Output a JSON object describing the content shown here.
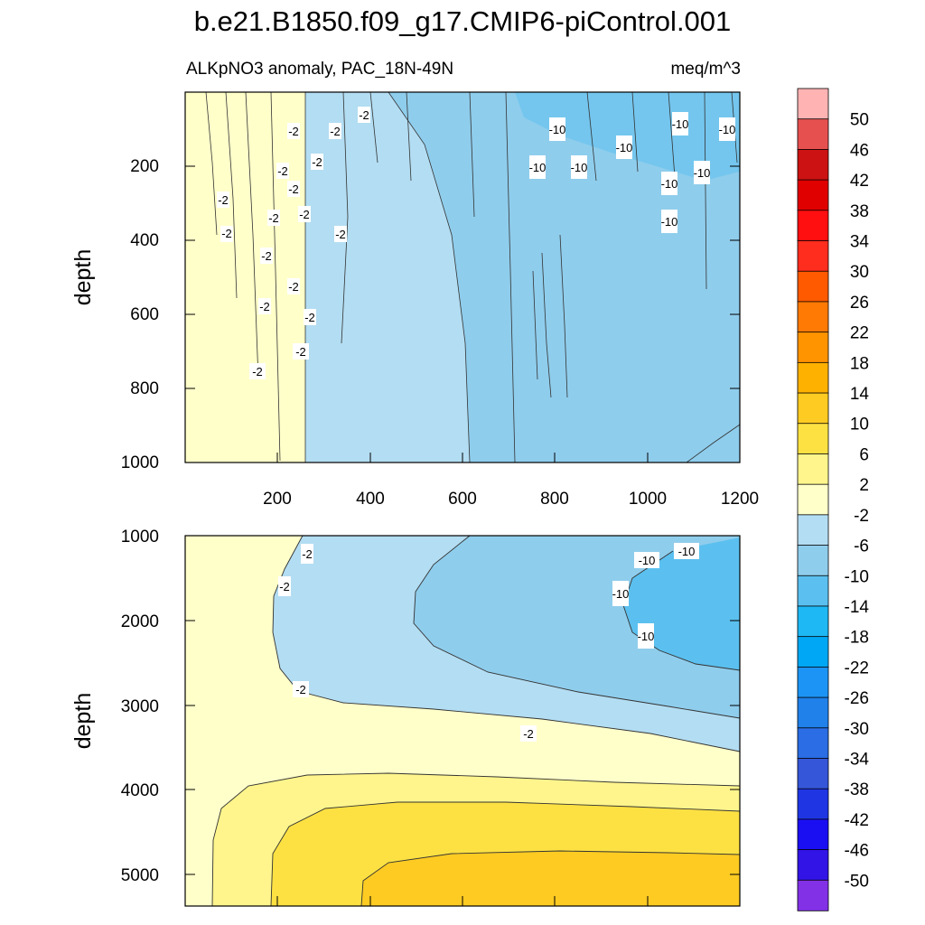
{
  "title": "b.e21.B1850.f09_g17.CMIP6-piControl.001",
  "subtitle_left": "ALKpNO3 anomaly, PAC_18N-49N",
  "units": "meq/m^3",
  "chart_data": [
    {
      "type": "contour",
      "panel": "upper",
      "ylabel": "depth",
      "ylim": [
        0,
        1000
      ],
      "xlim": [
        0,
        1200
      ],
      "xticks": [
        "200",
        "400",
        "600",
        "800",
        "1000",
        "1200"
      ],
      "yticks": [
        "200",
        "400",
        "600",
        "800",
        "1000"
      ],
      "contour_labels": [
        "-2",
        "-10"
      ],
      "regions": [
        {
          "range": "-2 to 2",
          "color": "#FFFFCA"
        },
        {
          "range": "-6 to -2",
          "color": "#B3DDF2"
        },
        {
          "range": "-10 to -6",
          "color": "#8FCDEC"
        },
        {
          "range": "-14 to -10",
          "color": "#5BC0EF"
        }
      ]
    },
    {
      "type": "contour",
      "panel": "lower",
      "ylabel": "depth",
      "ylim": [
        1000,
        5400
      ],
      "xlim": [
        0,
        1200
      ],
      "yticks": [
        "1000",
        "2000",
        "3000",
        "4000",
        "5000"
      ],
      "contour_labels": [
        "-2",
        "-10"
      ],
      "regions": [
        {
          "range": "-14 to -10",
          "color": "#5BC0EF"
        },
        {
          "range": "-10 to -6",
          "color": "#8FCDEC"
        },
        {
          "range": "-6 to -2",
          "color": "#B3DDF2"
        },
        {
          "range": "-2 to 2",
          "color": "#FFFFCA"
        },
        {
          "range": "2 to 6",
          "color": "#FFF58C"
        },
        {
          "range": "6 to 10",
          "color": "#FDE143"
        },
        {
          "range": "10 to 14",
          "color": "#FECB22"
        }
      ]
    }
  ],
  "colorbar": {
    "labels": [
      "50",
      "46",
      "42",
      "38",
      "34",
      "30",
      "26",
      "22",
      "18",
      "14",
      "10",
      "6",
      "2",
      "-2",
      "-6",
      "-10",
      "-14",
      "-18",
      "-22",
      "-26",
      "-30",
      "-34",
      "-38",
      "-42",
      "-46",
      "-50"
    ],
    "colors": [
      "#FFB3B3",
      "#E65150",
      "#CC1212",
      "#E00000",
      "#FF0F0F",
      "#FF2D1E",
      "#FF5A00",
      "#FF7A05",
      "#FF9300",
      "#FFB100",
      "#FECB22",
      "#FDE143",
      "#FFF58C",
      "#FFFFCA",
      "#B3DDF2",
      "#8FCDEC",
      "#5BC0EF",
      "#1EB8F4",
      "#00A7F4",
      "#1C94F5",
      "#2081EA",
      "#2A6DE4",
      "#3556D8",
      "#1F35E4",
      "#1A0FF3",
      "#3214E6",
      "#8231E6"
    ]
  }
}
